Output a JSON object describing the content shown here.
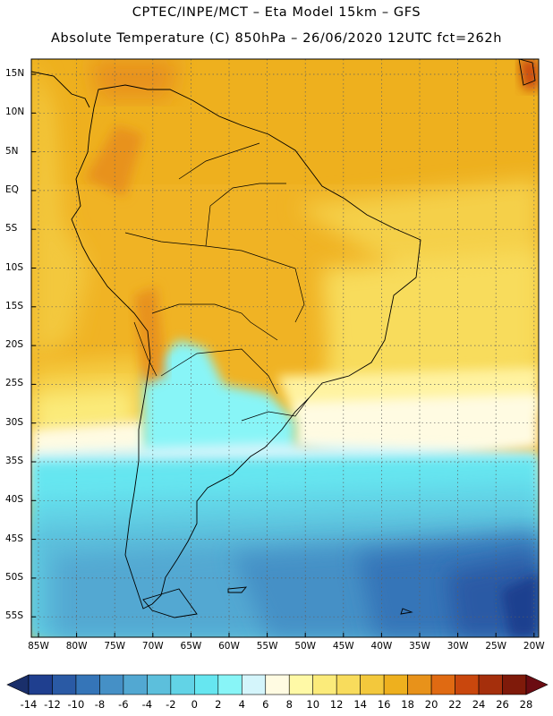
{
  "header": {
    "line1": "CPTEC/INPE/MCT –  Eta Model 15km – GFS",
    "line2": "Absolute Temperature (C) 850hPa – 26/06/2020 12UTC fct=262h"
  },
  "axes": {
    "lat_labels": [
      "15N",
      "10N",
      "5N",
      "EQ",
      "5S",
      "10S",
      "15S",
      "20S",
      "25S",
      "30S",
      "35S",
      "40S",
      "45S",
      "50S",
      "55S"
    ],
    "lon_labels": [
      "85W",
      "80W",
      "75W",
      "70W",
      "65W",
      "60W",
      "55W",
      "50W",
      "45W",
      "40W",
      "35W",
      "30W",
      "25W",
      "20W"
    ]
  },
  "colorbar": {
    "labels": [
      "-14",
      "-12",
      "-10",
      "-8",
      "-6",
      "-4",
      "-2",
      "0",
      "2",
      "4",
      "6",
      "8",
      "10",
      "12",
      "14",
      "16",
      "18",
      "20",
      "22",
      "24",
      "26",
      "28"
    ],
    "colors": [
      "#1f3f8f",
      "#2a5aa5",
      "#3575b8",
      "#4590c6",
      "#52a8d2",
      "#5cbfdc",
      "#62d3e6",
      "#66e6f0",
      "#88f5f7",
      "#d4f5fb",
      "#fffbe2",
      "#fff9a6",
      "#fbeb7a",
      "#f8dc5c",
      "#f3c83c",
      "#eeb01e",
      "#e8921a",
      "#e06a12",
      "#c9470d",
      "#a52f0c",
      "#7f1a0a"
    ],
    "under_color": "#1a2f6b",
    "over_color": "#6b0c12"
  }
}
